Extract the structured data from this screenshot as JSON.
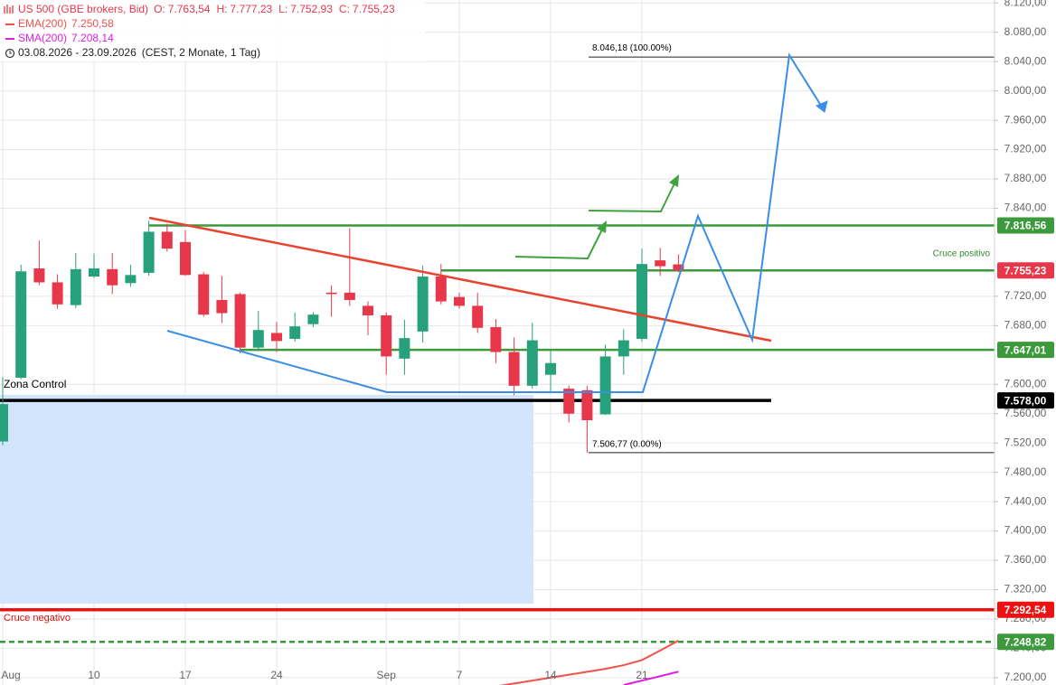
{
  "chart_data": {
    "type": "candlestick",
    "header": {
      "symbol": "US 500 (GBE brokers, Bid)",
      "ohlc": [
        {
          "key": "O:",
          "text": "7.763,54"
        },
        {
          "key": "H:",
          "text": "7.777,23"
        },
        {
          "key": "L:",
          "text": "7.752,93"
        },
        {
          "key": "C:",
          "text": "7.755,23"
        }
      ],
      "range": "03.08.2026 - 23.09.2026",
      "range_note": "(CEST, 2 Monate, 1 Tag)"
    },
    "categories": [
      "Aug",
      null,
      null,
      null,
      null,
      "10",
      null,
      null,
      null,
      null,
      "17",
      null,
      null,
      null,
      null,
      "24",
      null,
      null,
      null,
      null,
      null,
      "Sep",
      null,
      null,
      null,
      "7",
      null,
      null,
      null,
      null,
      "14",
      null,
      null,
      null,
      null,
      "21",
      null,
      null
    ],
    "open": [
      7522,
      7609,
      7758,
      7739,
      7708,
      7747,
      7757,
      7738,
      7752,
      7808,
      7794,
      7750,
      7715,
      7723,
      7650,
      7670,
      7662,
      7682,
      7725,
      7725,
      7707,
      7694,
      7635,
      7672,
      7747,
      7719,
      7707,
      7678,
      7644,
      7598,
      7613,
      7594,
      7592,
      7559,
      7638,
      7662,
      7769,
      7763.54
    ],
    "high": [
      7610,
      7763,
      7796,
      7750,
      7779,
      7778,
      7779,
      7763,
      7823,
      7819,
      7810,
      7753,
      7748,
      7725,
      7700,
      7685,
      7698,
      7698,
      7735,
      7813,
      7713,
      7698,
      7688,
      7762,
      7764,
      7725,
      7725,
      7689,
      7664,
      7684,
      7648,
      7598,
      7598,
      7654,
      7675,
      7785,
      7786,
      7777.23
    ],
    "low": [
      7517,
      7607,
      7735,
      7703,
      7704,
      7745,
      7723,
      7733,
      7748,
      7781,
      7748,
      7692,
      7684,
      7642,
      7645,
      7644,
      7658,
      7678,
      7692,
      7707,
      7667,
      7613,
      7613,
      7657,
      7709,
      7703,
      7670,
      7629,
      7585,
      7594,
      7590,
      7548,
      7506.77,
      7558,
      7613,
      7658,
      7748,
      7752.93
    ],
    "close": [
      7573,
      7754,
      7739,
      7709,
      7757,
      7758,
      7735,
      7749,
      7808,
      7785,
      7749,
      7695,
      7697,
      7650,
      7674,
      7659,
      7679,
      7695,
      7723,
      7715,
      7694,
      7638,
      7663,
      7747,
      7713,
      7707,
      7677,
      7644,
      7598,
      7660,
      7629,
      7560,
      7551,
      7638,
      7660,
      7764,
      7761,
      7755.23
    ],
    "up_color": "#26a17b",
    "down_color": "#e8374b",
    "indicators": [
      {
        "name": "EMA(200)",
        "value_label": "7.250,58",
        "color": "#f0514a",
        "values": [
          null,
          null,
          null,
          null,
          null,
          null,
          null,
          null,
          null,
          null,
          null,
          null,
          null,
          null,
          null,
          null,
          null,
          null,
          null,
          null,
          null,
          null,
          null,
          null,
          null,
          7180,
          7184,
          7188,
          7192,
          7196,
          7200,
          7204,
          7208,
          7212,
          7217,
          7224,
          7237,
          7250.58
        ]
      },
      {
        "name": "SMA(200)",
        "value_label": "7.208,14",
        "color": "#e01ee0",
        "values": [
          null,
          null,
          null,
          null,
          null,
          null,
          null,
          null,
          null,
          null,
          null,
          null,
          null,
          null,
          null,
          null,
          null,
          null,
          null,
          null,
          null,
          null,
          null,
          null,
          null,
          null,
          null,
          null,
          null,
          null,
          null,
          null,
          null,
          null,
          7190,
          7196,
          7202,
          7208.14
        ]
      }
    ],
    "ylim": [
      7190,
      8124
    ],
    "yticks": [
      {
        "value": 8120,
        "label": "8.120,00"
      },
      {
        "value": 8080,
        "label": "8.080,00"
      },
      {
        "value": 8040,
        "label": "8.040,00"
      },
      {
        "value": 8000,
        "label": "8.000,00"
      },
      {
        "value": 7960,
        "label": "7.960,00"
      },
      {
        "value": 7920,
        "label": "7.920,00"
      },
      {
        "value": 7880,
        "label": "7.880,00"
      },
      {
        "value": 7840,
        "label": "7.840,00"
      },
      {
        "value": 7720,
        "label": "7.720,00"
      },
      {
        "value": 7680,
        "label": "7.680,00"
      },
      {
        "value": 7600,
        "label": "7.600,00"
      },
      {
        "value": 7560,
        "label": "7.560,00"
      },
      {
        "value": 7520,
        "label": "7.520,00"
      },
      {
        "value": 7480,
        "label": "7.480,00"
      },
      {
        "value": 7440,
        "label": "7.440,00"
      },
      {
        "value": 7400,
        "label": "7.400,00"
      },
      {
        "value": 7360,
        "label": "7.360,00"
      },
      {
        "value": 7320,
        "label": "7.320,00"
      },
      {
        "value": 7280,
        "label": "7.280,00"
      },
      {
        "value": 7240,
        "label": "7.240,00"
      },
      {
        "value": 7200,
        "label": "7.200,00"
      }
    ],
    "grid": true,
    "levels": [
      {
        "value": 7816.56,
        "label": "7.816,56",
        "color": "#3c9a3c",
        "tag_color": "#3c9a3c"
      },
      {
        "value": 7755.23,
        "label": "7.755,23",
        "color": "#3c9a3c",
        "tag_color": "#e8374b"
      },
      {
        "value": 7647.01,
        "label": "7.647,01",
        "color": "#3c9a3c",
        "tag_color": "#3c9a3c"
      },
      {
        "value": 7578,
        "label": "7.578,00",
        "color": "#000000",
        "tag_color": "#000000"
      },
      {
        "value": 7292.54,
        "label": "7.292,54",
        "color": "#ee1111",
        "tag_color": "#ee1111"
      },
      {
        "value": 7248.82,
        "label": "7.248,82",
        "color": "#3c9a3c",
        "tag_color": "#3c9a3c",
        "dashed": true
      }
    ],
    "fib": [
      {
        "value": 8046.18,
        "label": "8.046,18 (100.00%)"
      },
      {
        "value": 7506.77,
        "label": "7.506,77 (0.00%)"
      }
    ],
    "annotations": {
      "zone": "Zona Control",
      "positive": "Cruce positivo",
      "negative": "Cruce negativo"
    }
  }
}
